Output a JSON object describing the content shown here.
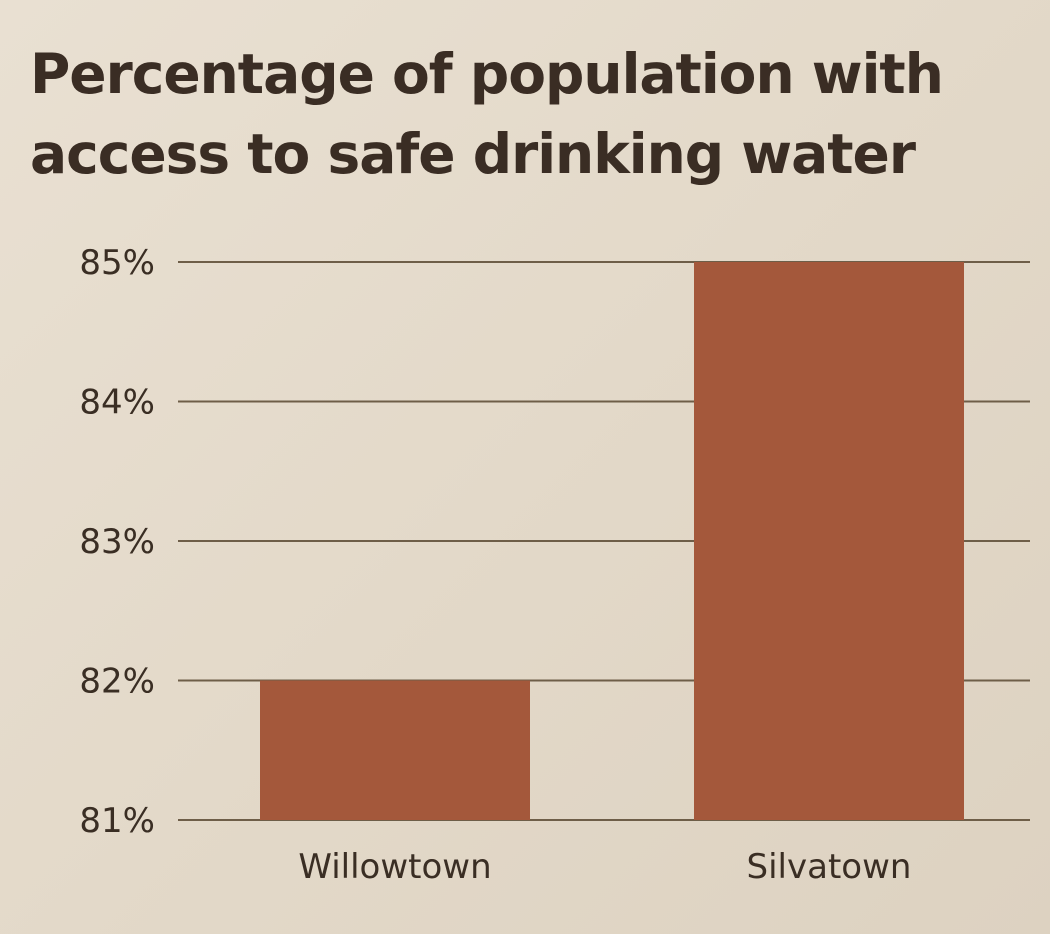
{
  "chart_data": {
    "type": "bar",
    "title": "Percentage of population with access to safe drinking water",
    "categories": [
      "Willowtown",
      "Silvatown"
    ],
    "values": [
      82,
      85
    ],
    "ylim": [
      81,
      85
    ],
    "yticks": [
      81,
      82,
      83,
      84,
      85
    ],
    "ytick_labels": [
      "81%",
      "82%",
      "83%",
      "84%",
      "85%"
    ],
    "xlabel": "",
    "ylabel": "",
    "grid": true,
    "legend": "none",
    "bar_color": "#a4583b"
  }
}
